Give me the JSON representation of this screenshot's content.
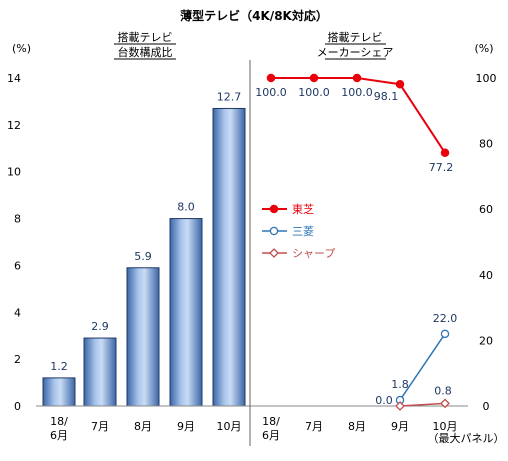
{
  "title": "薄型テレビ（4K/8K対応）",
  "chart_data": [
    {
      "type": "bar",
      "subtitle_lines": [
        "搭載テレビ",
        "台数構成比"
      ],
      "y_unit": "(%)",
      "categories": [
        [
          "18/",
          "6月"
        ],
        [
          "7月"
        ],
        [
          "8月"
        ],
        [
          "9月"
        ],
        [
          "10月"
        ]
      ],
      "values": [
        1.2,
        2.9,
        5.9,
        8.0,
        12.7
      ],
      "data_labels": [
        "1.2",
        "2.9",
        "5.9",
        "8.0",
        "12.7"
      ],
      "ylim": [
        0,
        14
      ],
      "yticks": [
        "0",
        "2",
        "4",
        "6",
        "8",
        "10",
        "12",
        "14"
      ],
      "bar_color": "#4f81bd"
    },
    {
      "type": "line",
      "subtitle_lines": [
        "搭載テレビ",
        "メーカーシェア"
      ],
      "y_unit": "(%)",
      "categories": [
        [
          "18/",
          "6月"
        ],
        [
          "7月"
        ],
        [
          "8月"
        ],
        [
          "9月"
        ],
        [
          "10月"
        ]
      ],
      "ylim": [
        0,
        100
      ],
      "yticks": [
        "0",
        "20",
        "40",
        "60",
        "80",
        "100"
      ],
      "footnote": "（最大パネル）",
      "series": [
        {
          "name": "東芝",
          "values": [
            100.0,
            100.0,
            100.0,
            98.1,
            77.2
          ],
          "labels": [
            "100.0",
            "100.0",
            "100.0",
            "98.1",
            "77.2"
          ],
          "label_idx": [
            0,
            1,
            2,
            3,
            4
          ],
          "color": "#e8000b",
          "marker": "circle-filled"
        },
        {
          "name": "三菱",
          "values": [
            null,
            null,
            null,
            1.8,
            22.0
          ],
          "labels": [
            "1.8",
            "22.0"
          ],
          "label_idx": [
            3,
            4
          ],
          "color": "#2e75b6",
          "marker": "circle-open"
        },
        {
          "name": "シャープ",
          "values": [
            null,
            null,
            null,
            0.0,
            0.8
          ],
          "labels": [
            "0.0",
            "0.8"
          ],
          "label_idx": [
            3,
            4
          ],
          "color": "#c0504d",
          "marker": "diamond-open"
        }
      ]
    }
  ]
}
